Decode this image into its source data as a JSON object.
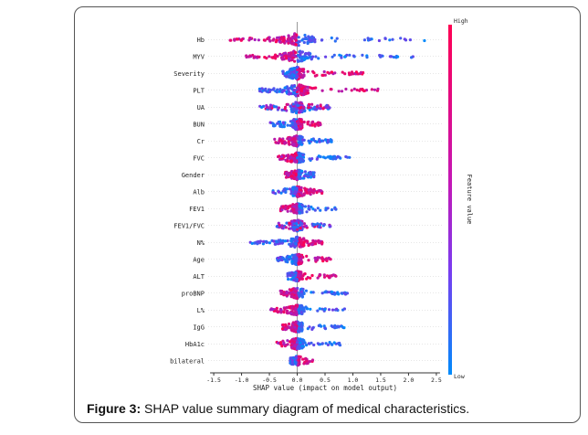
{
  "chart_data": {
    "type": "scatter",
    "title": "",
    "xlabel": "SHAP value (impact on model output)",
    "xlim": [
      -1.6,
      2.6
    ],
    "xticks": [
      -1.5,
      -1.0,
      -0.5,
      0.0,
      0.5,
      1.0,
      1.5,
      2.0,
      2.5
    ],
    "xtick_labels": [
      "-1.5",
      "-1.0",
      "-0.5",
      "0.0",
      "0.5",
      "1.0",
      "1.5",
      "2.0",
      "2.5"
    ],
    "colorbar": {
      "label": "Feature value",
      "high_label": "High",
      "low_label": "Low",
      "high_color": "#ff0052",
      "low_color": "#008bfb"
    },
    "features": [
      {
        "name": "Hb",
        "range": [
          -1.35,
          2.35
        ],
        "pos_color": "low",
        "spread": 0.32
      },
      {
        "name": "MYV",
        "range": [
          -1.05,
          2.15
        ],
        "pos_color": "low",
        "spread": 0.3
      },
      {
        "name": "Severity",
        "range": [
          -0.3,
          1.2
        ],
        "pos_color": "high",
        "spread": 0.3
      },
      {
        "name": "PLT",
        "range": [
          -0.75,
          1.5
        ],
        "pos_color": "high",
        "spread": 0.3
      },
      {
        "name": "UA",
        "range": [
          -0.75,
          0.6
        ],
        "pos_color": "mix",
        "spread": 0.3
      },
      {
        "name": "BUN",
        "range": [
          -0.55,
          0.45
        ],
        "pos_color": "high",
        "spread": 0.28
      },
      {
        "name": "Cr",
        "range": [
          -0.45,
          0.65
        ],
        "pos_color": "low",
        "spread": 0.26
      },
      {
        "name": "FVC",
        "range": [
          -0.4,
          0.95
        ],
        "pos_color": "low",
        "spread": 0.26
      },
      {
        "name": "Gender",
        "range": [
          -0.25,
          0.35
        ],
        "pos_color": "low",
        "spread": 0.24
      },
      {
        "name": "Alb",
        "range": [
          -0.5,
          0.45
        ],
        "pos_color": "high",
        "spread": 0.26
      },
      {
        "name": "FEV1",
        "range": [
          -0.35,
          0.7
        ],
        "pos_color": "low",
        "spread": 0.26
      },
      {
        "name": "FEV1/FVC",
        "range": [
          -0.45,
          0.6
        ],
        "pos_color": "mix",
        "spread": 0.28
      },
      {
        "name": "N%",
        "range": [
          -0.95,
          0.45
        ],
        "pos_color": "high",
        "spread": 0.26
      },
      {
        "name": "Age",
        "range": [
          -0.4,
          0.6
        ],
        "pos_color": "high",
        "spread": 0.26
      },
      {
        "name": "ALT",
        "range": [
          -0.2,
          0.7
        ],
        "pos_color": "high",
        "spread": 0.24
      },
      {
        "name": "proBNP",
        "range": [
          -0.35,
          0.95
        ],
        "pos_color": "low",
        "spread": 0.26
      },
      {
        "name": "L%",
        "range": [
          -0.55,
          0.9
        ],
        "pos_color": "low",
        "spread": 0.26
      },
      {
        "name": "IgG",
        "range": [
          -0.3,
          0.85
        ],
        "pos_color": "low",
        "spread": 0.26
      },
      {
        "name": "HbA1c",
        "range": [
          -0.45,
          0.8
        ],
        "pos_color": "low",
        "spread": 0.28
      },
      {
        "name": "bilateral",
        "range": [
          -0.15,
          0.3
        ],
        "pos_color": "high",
        "spread": 0.22
      }
    ]
  },
  "caption": {
    "label": "Figure 3:",
    "text": " SHAP value summary diagram of medical characteristics."
  }
}
